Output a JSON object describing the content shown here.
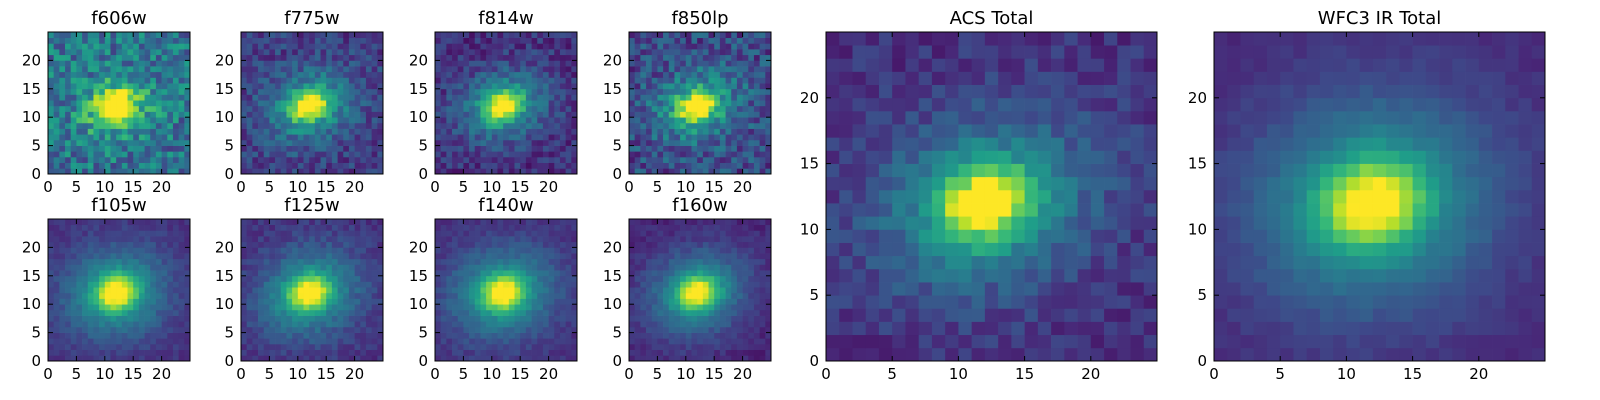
{
  "colormap": [
    "#440154",
    "#482878",
    "#3e4989",
    "#31688e",
    "#26828e",
    "#1f9e89",
    "#35b779",
    "#6ece58",
    "#b5de2b",
    "#fde725"
  ],
  "chart_data": [
    {
      "type": "heatmap",
      "title": "f606w",
      "grid_size": 25,
      "xlim": [
        0,
        25
      ],
      "ylim": [
        0,
        25
      ],
      "xticks": [
        0,
        5,
        10,
        15,
        20
      ],
      "yticks": [
        0,
        5,
        10,
        15,
        20
      ],
      "background_level": 0.38,
      "noise": 0.2,
      "peak_level": 1.0,
      "core_sigma": [
        2.0,
        1.5
      ],
      "halo_sigma": [
        4.5,
        3.4
      ],
      "center": [
        12,
        12
      ],
      "angle_deg": 20,
      "seed": 11
    },
    {
      "type": "heatmap",
      "title": "f775w",
      "grid_size": 25,
      "xlim": [
        0,
        25
      ],
      "ylim": [
        0,
        25
      ],
      "xticks": [
        0,
        5,
        10,
        15,
        20
      ],
      "yticks": [
        0,
        5,
        10,
        15,
        20
      ],
      "background_level": 0.18,
      "noise": 0.12,
      "peak_level": 1.0,
      "core_sigma": [
        2.2,
        1.6
      ],
      "halo_sigma": [
        5.5,
        4.2
      ],
      "center": [
        12,
        12
      ],
      "angle_deg": 20,
      "seed": 23
    },
    {
      "type": "heatmap",
      "title": "f814w",
      "grid_size": 25,
      "xlim": [
        0,
        25
      ],
      "ylim": [
        0,
        25
      ],
      "xticks": [
        0,
        5,
        10,
        15,
        20
      ],
      "yticks": [
        0,
        5,
        10,
        15,
        20
      ],
      "background_level": 0.14,
      "noise": 0.11,
      "peak_level": 1.0,
      "core_sigma": [
        2.2,
        1.6
      ],
      "halo_sigma": [
        5.5,
        4.2
      ],
      "center": [
        12,
        12
      ],
      "angle_deg": 20,
      "seed": 37
    },
    {
      "type": "heatmap",
      "title": "f850lp",
      "grid_size": 25,
      "xlim": [
        0,
        25
      ],
      "ylim": [
        0,
        25
      ],
      "xticks": [
        0,
        5,
        10,
        15,
        20
      ],
      "yticks": [
        0,
        5,
        10,
        15,
        20
      ],
      "background_level": 0.22,
      "noise": 0.16,
      "peak_level": 1.0,
      "core_sigma": [
        2.1,
        1.6
      ],
      "halo_sigma": [
        5.2,
        4.0
      ],
      "center": [
        12,
        12
      ],
      "angle_deg": 20,
      "seed": 41
    },
    {
      "type": "heatmap",
      "title": "f105w",
      "grid_size": 25,
      "xlim": [
        0,
        25
      ],
      "ylim": [
        0,
        25
      ],
      "xticks": [
        0,
        5,
        10,
        15,
        20
      ],
      "yticks": [
        0,
        5,
        10,
        15,
        20
      ],
      "background_level": 0.14,
      "noise": 0.05,
      "peak_level": 1.0,
      "core_sigma": [
        2.4,
        2.0
      ],
      "halo_sigma": [
        6.5,
        5.5
      ],
      "center": [
        12,
        12
      ],
      "angle_deg": 15,
      "seed": 53
    },
    {
      "type": "heatmap",
      "title": "f125w",
      "grid_size": 25,
      "xlim": [
        0,
        25
      ],
      "ylim": [
        0,
        25
      ],
      "xticks": [
        0,
        5,
        10,
        15,
        20
      ],
      "yticks": [
        0,
        5,
        10,
        15,
        20
      ],
      "background_level": 0.14,
      "noise": 0.06,
      "peak_level": 1.0,
      "core_sigma": [
        2.4,
        1.9
      ],
      "halo_sigma": [
        6.5,
        5.3
      ],
      "center": [
        12,
        12
      ],
      "angle_deg": 20,
      "seed": 67
    },
    {
      "type": "heatmap",
      "title": "f140w",
      "grid_size": 25,
      "xlim": [
        0,
        25
      ],
      "ylim": [
        0,
        25
      ],
      "xticks": [
        0,
        5,
        10,
        15,
        20
      ],
      "yticks": [
        0,
        5,
        10,
        15,
        20
      ],
      "background_level": 0.13,
      "noise": 0.05,
      "peak_level": 1.0,
      "core_sigma": [
        2.5,
        2.0
      ],
      "halo_sigma": [
        6.8,
        5.6
      ],
      "center": [
        12,
        12
      ],
      "angle_deg": 15,
      "seed": 71
    },
    {
      "type": "heatmap",
      "title": "f160w",
      "grid_size": 25,
      "xlim": [
        0,
        25
      ],
      "ylim": [
        0,
        25
      ],
      "xticks": [
        0,
        5,
        10,
        15,
        20
      ],
      "yticks": [
        0,
        5,
        10,
        15,
        20
      ],
      "background_level": 0.1,
      "noise": 0.05,
      "peak_level": 1.0,
      "core_sigma": [
        2.4,
        1.9
      ],
      "halo_sigma": [
        6.5,
        5.3
      ],
      "center": [
        12,
        12
      ],
      "angle_deg": 20,
      "seed": 83
    },
    {
      "type": "heatmap",
      "title": "ACS Total",
      "grid_size": 25,
      "xlim": [
        0,
        25
      ],
      "ylim": [
        0,
        25
      ],
      "xticks": [
        0,
        5,
        10,
        15,
        20
      ],
      "yticks": [
        0,
        5,
        10,
        15,
        20
      ],
      "background_level": 0.14,
      "noise": 0.08,
      "peak_level": 1.05,
      "core_sigma": [
        2.3,
        1.7
      ],
      "halo_sigma": [
        5.8,
        4.4
      ],
      "center": [
        12,
        12
      ],
      "angle_deg": 20,
      "seed": 97
    },
    {
      "type": "heatmap",
      "title": "WFC3 IR Total",
      "grid_size": 25,
      "xlim": [
        0,
        25
      ],
      "ylim": [
        0,
        25
      ],
      "xticks": [
        0,
        5,
        10,
        15,
        20
      ],
      "yticks": [
        0,
        5,
        10,
        15,
        20
      ],
      "background_level": 0.11,
      "noise": 0.03,
      "peak_level": 1.0,
      "core_sigma": [
        2.6,
        2.1
      ],
      "halo_sigma": [
        7.0,
        6.0
      ],
      "center": [
        12,
        12
      ],
      "angle_deg": 15,
      "seed": 101
    }
  ]
}
